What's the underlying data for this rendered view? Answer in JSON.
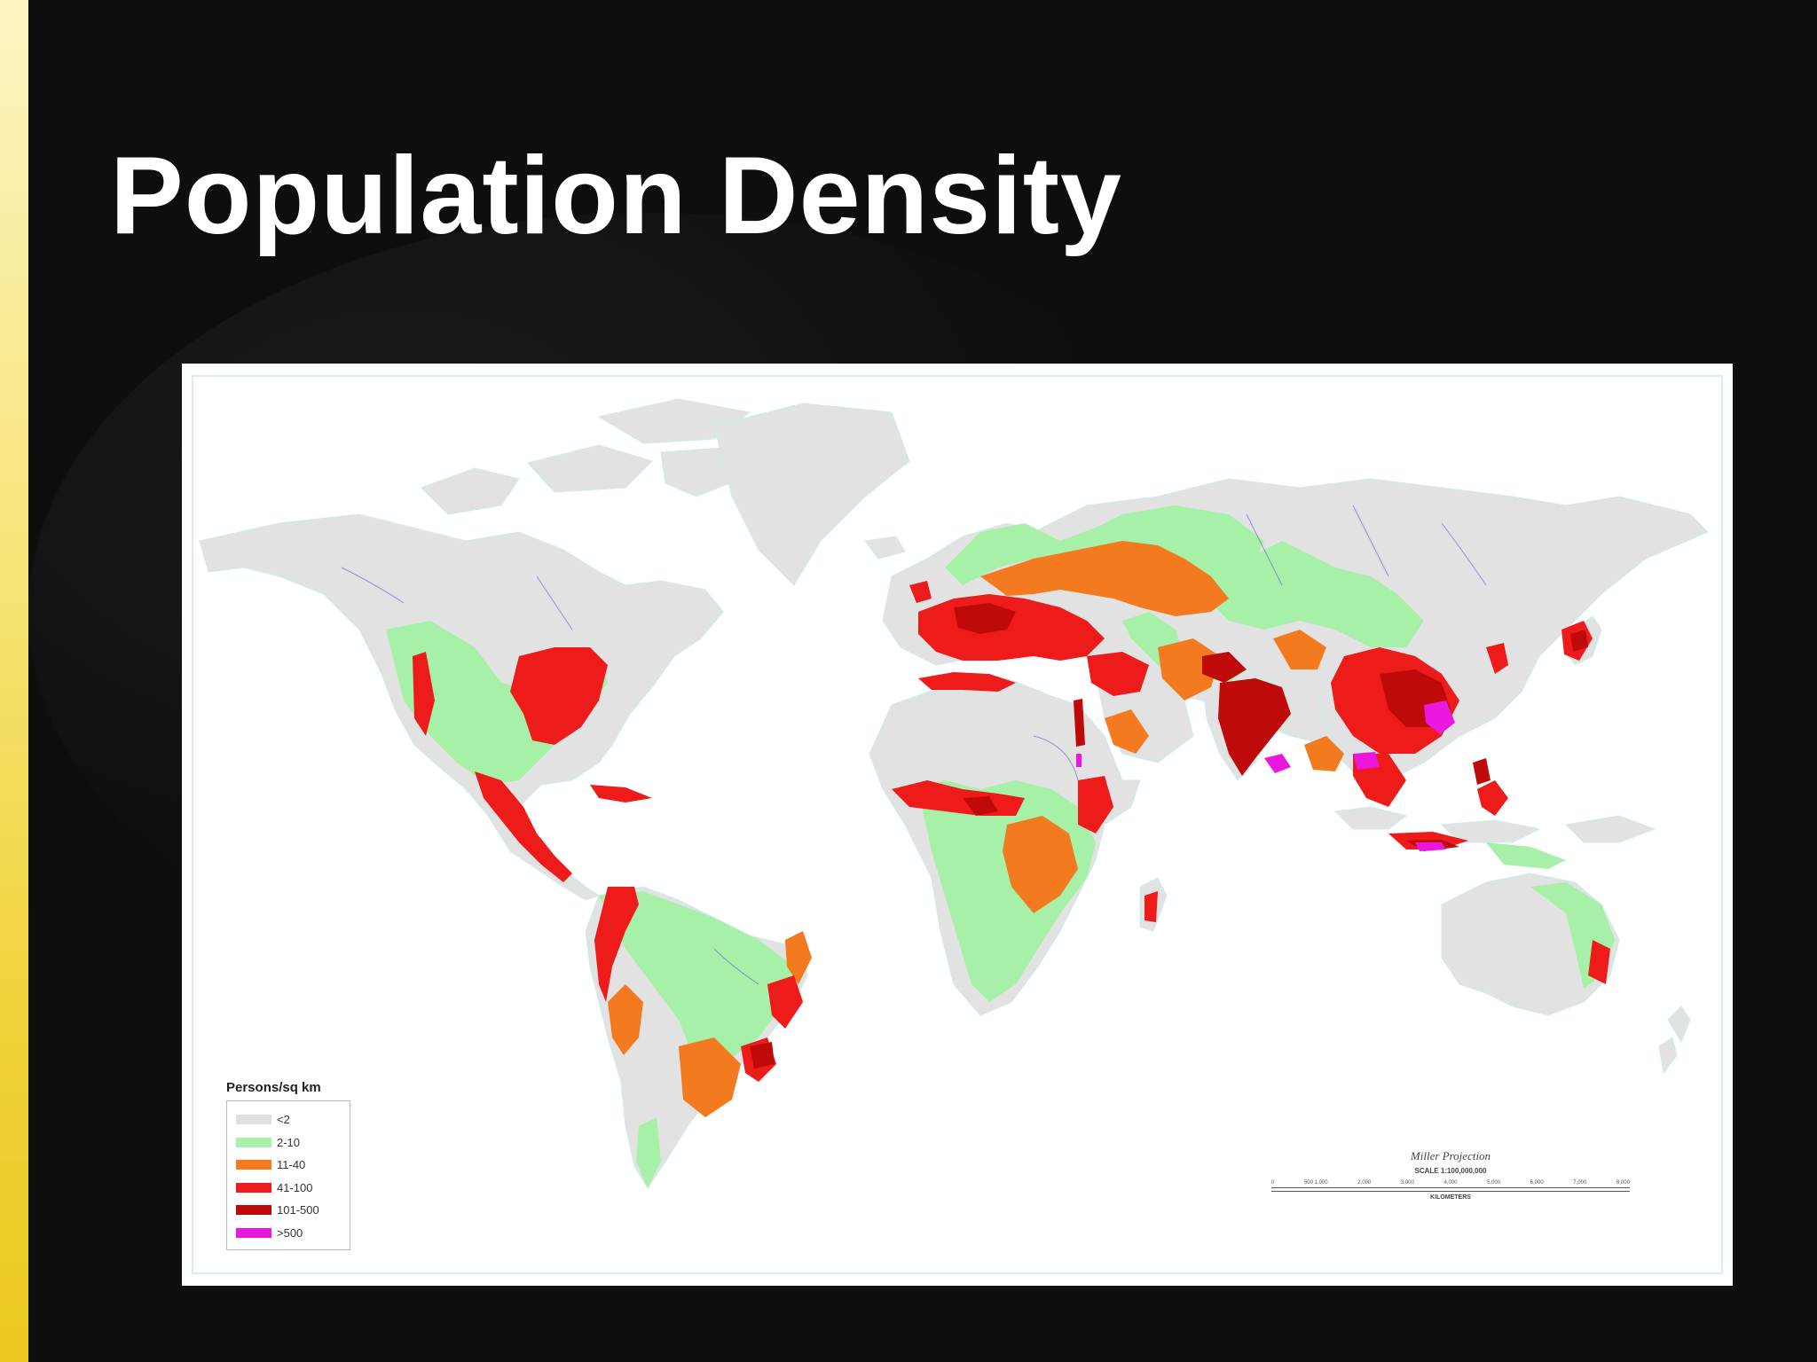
{
  "slide": {
    "title": "Population Density"
  },
  "map": {
    "projection_name": "Miller Projection",
    "scale_text": "SCALE 1:100,000,000",
    "scale_ticks": [
      "0",
      "500 1,000",
      "2,000",
      "3,000",
      "4,000",
      "5,000",
      "6,000",
      "7,000",
      "8,000"
    ],
    "scale_unit": "KILOMETERS",
    "legend": {
      "title": "Persons/sq km",
      "items": [
        {
          "label": "<2",
          "color": "#e0e0e0"
        },
        {
          "label": "2-10",
          "color": "#a6f0a8"
        },
        {
          "label": "11-40",
          "color": "#f47a1f"
        },
        {
          "label": "41-100",
          "color": "#ee1b1b"
        },
        {
          "label": "101-500",
          "color": "#bf0a0a"
        },
        {
          "label": ">500",
          "color": "#ea18de"
        }
      ]
    }
  },
  "colors": {
    "background": "#0d0e0d",
    "accent_bar": "#f0d23a",
    "ocean": "#ffffff",
    "water_lines": "#bfe8ea"
  }
}
